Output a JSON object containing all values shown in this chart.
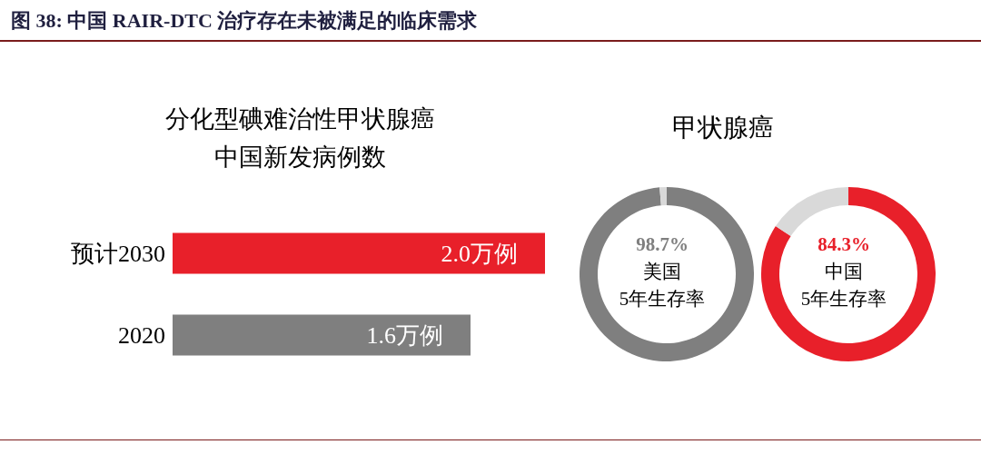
{
  "chart_data": [
    {
      "type": "other",
      "title": "图 38:  中国 RAIR-DTC 治疗存在未被满足的临床需求"
    },
    {
      "type": "bar",
      "orientation": "horizontal",
      "title": "分化型碘难治性甲状腺癌中国新发病例数",
      "categories": [
        "预计2030",
        "2020"
      ],
      "values": [
        2.0,
        1.6
      ],
      "colors": [
        "#e8202a",
        "#7f7f7f"
      ],
      "value_labels": [
        "2.0万例",
        "1.6万例"
      ]
    },
    {
      "type": "other",
      "title": "甲状腺癌"
    },
    {
      "type": "donut",
      "title": "美国",
      "categories": [
        "5年生存率",
        null
      ],
      "values": [
        98.7,
        1.3
      ],
      "colors": [
        "#7f7f7f",
        "#d9d9d9"
      ],
      "value_labels": [
        "98.7%",
        null
      ]
    },
    {
      "type": "donut",
      "title": "中国",
      "categories": [
        "5年生存率",
        null
      ],
      "values": [
        84.3,
        15.7
      ],
      "colors": [
        "#e8202a",
        "#d9d9d9"
      ],
      "value_labels": [
        "84.3%",
        null
      ]
    }
  ]
}
